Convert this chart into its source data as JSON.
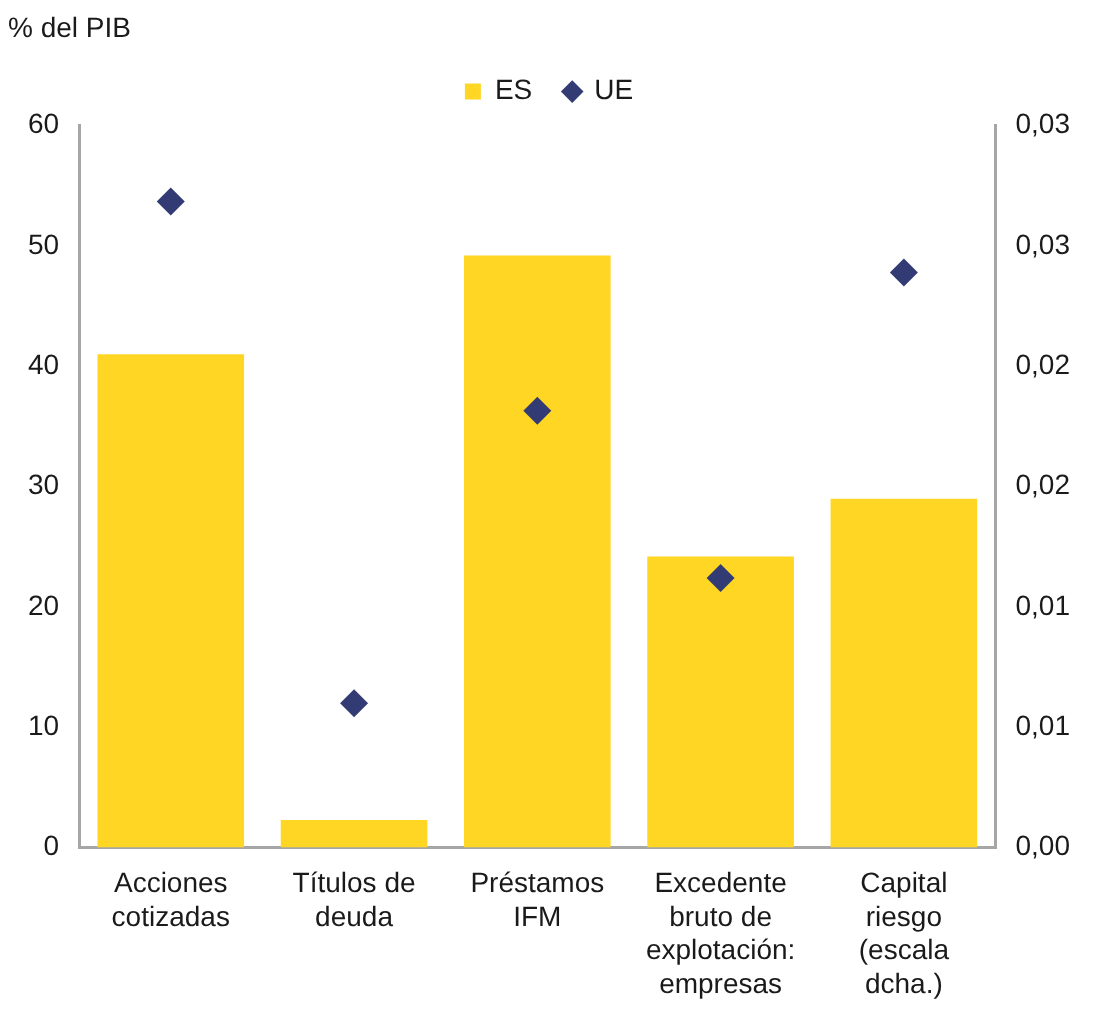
{
  "chart_data": {
    "type": "bar",
    "ylabel": "% del PIB",
    "categories": [
      "Acciones cotizadas",
      "Títulos de deuda",
      "Préstamos IFM",
      "Excedente bruto de explotación: empresas",
      "Capital riesgo (escala dcha.)"
    ],
    "series": [
      {
        "name": "ES",
        "color": "#ffd623",
        "values": [
          41.0,
          2.3,
          49.2,
          24.2,
          null
        ]
      },
      {
        "axis": "y2",
        "color": "#ffd623",
        "values": [
          null,
          null,
          null,
          null,
          0.0145
        ]
      },
      {
        "name": "UE",
        "type": "scatter",
        "color": "#323b73",
        "values": [
          53.7,
          12.0,
          36.3,
          22.4,
          null
        ]
      },
      {
        "type": "scatter",
        "axis": "y2",
        "color": "#323b73",
        "values": [
          null,
          null,
          null,
          null,
          0.0239
        ]
      }
    ],
    "ylim": [
      0,
      60
    ],
    "yticks": [
      0,
      10,
      20,
      30,
      40,
      50,
      60
    ],
    "y2lim": [
      0,
      0.03
    ],
    "y2ticks": [
      {
        "value": 0,
        "label": "0,00"
      },
      {
        "value": 0.005,
        "label": "0,01"
      },
      {
        "value": 0.01,
        "label": "0,01"
      },
      {
        "value": 0.015,
        "label": "0,02"
      },
      {
        "value": 0.02,
        "label": "0,02"
      },
      {
        "value": 0.025,
        "label": "0,03"
      },
      {
        "value": 0.03,
        "label": "0,03"
      }
    ],
    "legend": "top",
    "marker": "diamond"
  }
}
